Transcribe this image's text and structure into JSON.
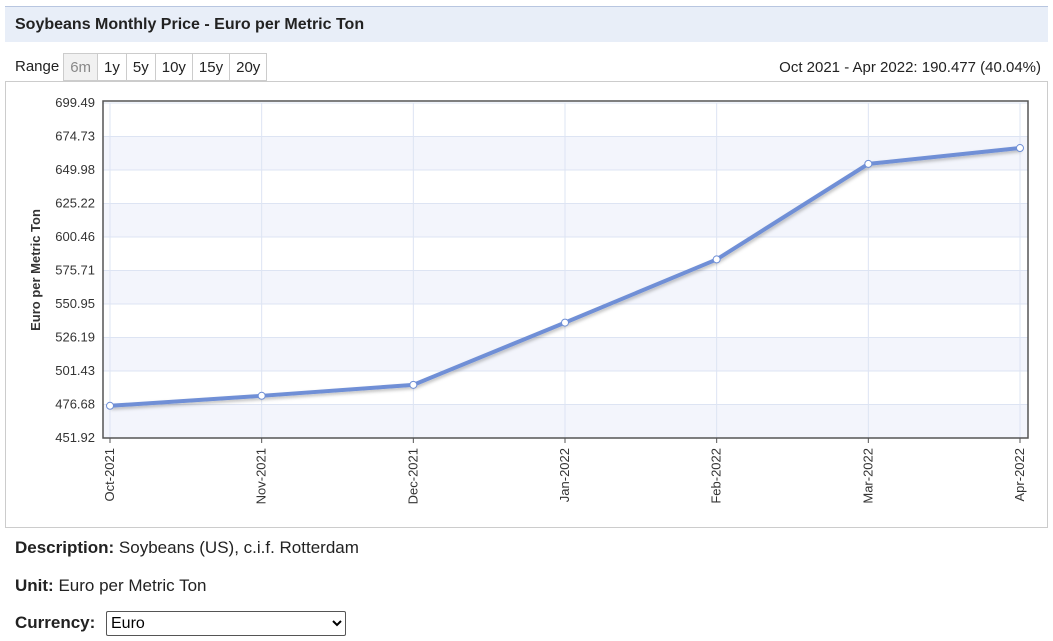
{
  "header": {
    "title": "Soybeans Monthly Price - Euro per Metric Ton"
  },
  "range": {
    "label": "Range",
    "options": [
      "6m",
      "1y",
      "5y",
      "10y",
      "15y",
      "20y"
    ],
    "summary": "Oct 2021 - Apr 2022: 190.477 (40.04%)"
  },
  "chart_data": {
    "type": "line",
    "y_label": "Euro per Metric Ton",
    "categories": [
      "Oct-2021",
      "Nov-2021",
      "Dec-2021",
      "Jan-2022",
      "Feb-2022",
      "Mar-2022",
      "Apr-2022"
    ],
    "values": [
      475.72,
      483.1,
      491.2,
      537.2,
      583.9,
      654.5,
      666.2
    ],
    "color": "#6f8fd6",
    "ylim": [
      451.92,
      699.49
    ],
    "yticks": [
      451.92,
      476.68,
      501.43,
      526.19,
      550.95,
      575.71,
      600.46,
      625.22,
      649.98,
      674.73,
      699.49
    ],
    "grid": true
  },
  "details": {
    "description_label": "Description:",
    "description": "Soybeans (US), c.i.f. Rotterdam",
    "unit_label": "Unit:",
    "unit": "Euro per Metric Ton",
    "currency_label": "Currency:",
    "currency": "Euro"
  }
}
